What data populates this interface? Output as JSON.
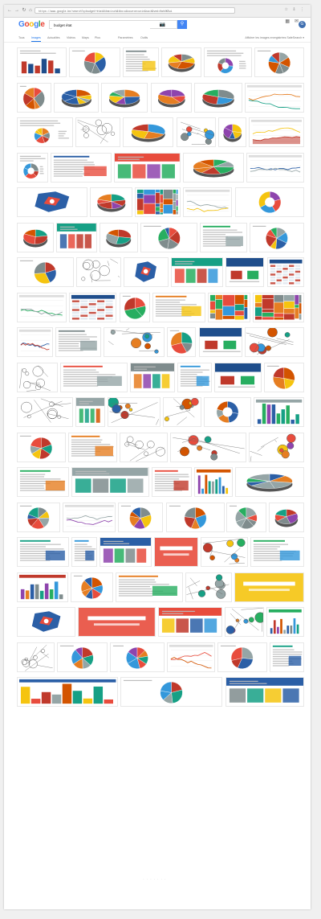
{
  "browser": {
    "url": "https://www.google.be/search?q=budget+état&tbm=isch&tbo=u&source=univ&sa=X&ved=0ahUKEwi",
    "back_icon": "back-arrow-icon",
    "forward_icon": "forward-arrow-icon",
    "reload_icon": "reload-icon"
  },
  "header": {
    "logo_letters": [
      "G",
      "o",
      "o",
      "g",
      "l",
      "e"
    ],
    "search_value": "budget état",
    "search_icon": "search-icon",
    "camera_icon": "camera-icon",
    "apps_icon": "apps-grid-icon",
    "notifications_icon": "bell-icon",
    "avatar_letter": "G"
  },
  "tabs": {
    "items": [
      {
        "label": "Tous"
      },
      {
        "label": "Images"
      },
      {
        "label": "Actualités"
      },
      {
        "label": "Vidéos"
      },
      {
        "label": "Maps"
      },
      {
        "label": "Plus"
      },
      {
        "label": "Paramètres"
      },
      {
        "label": "Outils"
      }
    ],
    "active_index": 1,
    "right_links": "Afficher les images enregistrées   SafeSearch ▾"
  },
  "colors": {
    "accent": "#1a73e8",
    "google_blue": "#4285f4",
    "google_red": "#ea4335",
    "google_yellow": "#fbbc05",
    "google_green": "#34a853",
    "palette": [
      "#2b5fa6",
      "#e84c3d",
      "#f5c40f",
      "#27ae60",
      "#8e44ad",
      "#e67e22",
      "#16a085",
      "#c0392b",
      "#3498db",
      "#95a5a6",
      "#d35400",
      "#7f8c8d"
    ]
  },
  "results": {
    "rows": [
      {
        "tiles": [
          {
            "kind": "doc-bar"
          },
          {
            "kind": "pie"
          },
          {
            "kind": "doc"
          },
          {
            "kind": "pie-3d"
          },
          {
            "kind": "doc-donut"
          },
          {
            "kind": "pie"
          }
        ]
      },
      {
        "tiles": [
          {
            "kind": "pie"
          },
          {
            "kind": "pie-3d"
          },
          {
            "kind": "pie-3d"
          },
          {
            "kind": "pie-3d"
          },
          {
            "kind": "pie-3d"
          },
          {
            "kind": "line"
          }
        ]
      },
      {
        "tiles": [
          {
            "kind": "doc-pie"
          },
          {
            "kind": "sketch"
          },
          {
            "kind": "pie-3d"
          },
          {
            "kind": "cartoon"
          },
          {
            "kind": "pie-3d"
          },
          {
            "kind": "area"
          }
        ]
      },
      {
        "tiles": [
          {
            "kind": "doc-donut"
          },
          {
            "kind": "doc"
          },
          {
            "kind": "infographic"
          },
          {
            "kind": "pie-3d"
          },
          {
            "kind": "line"
          }
        ]
      },
      {
        "tiles": [
          {
            "kind": "map"
          },
          {
            "kind": "pie-3d"
          },
          {
            "kind": "treemap"
          },
          {
            "kind": "line"
          },
          {
            "kind": "donut"
          }
        ]
      },
      {
        "tiles": [
          {
            "kind": "pie-3d"
          },
          {
            "kind": "infographic"
          },
          {
            "kind": "pie-3d"
          },
          {
            "kind": "pie"
          },
          {
            "kind": "doc"
          },
          {
            "kind": "pie"
          }
        ]
      },
      {
        "tiles": [
          {
            "kind": "pie"
          },
          {
            "kind": "sketch"
          },
          {
            "kind": "map"
          },
          {
            "kind": "infographic"
          },
          {
            "kind": "bar-banner"
          },
          {
            "kind": "table"
          }
        ]
      },
      {
        "tiles": [
          {
            "kind": "line"
          },
          {
            "kind": "table"
          },
          {
            "kind": "pie"
          },
          {
            "kind": "doc"
          },
          {
            "kind": "treemap"
          },
          {
            "kind": "treemap"
          }
        ]
      },
      {
        "tiles": [
          {
            "kind": "line"
          },
          {
            "kind": "doc"
          },
          {
            "kind": "cartoon"
          },
          {
            "kind": "pie"
          },
          {
            "kind": "bar-banner"
          },
          {
            "kind": "cartoon"
          }
        ]
      },
      {
        "tiles": [
          {
            "kind": "sketch"
          },
          {
            "kind": "doc"
          },
          {
            "kind": "infographic"
          },
          {
            "kind": "doc"
          },
          {
            "kind": "bar-banner"
          },
          {
            "kind": "pie"
          }
        ]
      },
      {
        "tiles": [
          {
            "kind": "sketch"
          },
          {
            "kind": "infographic"
          },
          {
            "kind": "cartoon"
          },
          {
            "kind": "cartoon"
          },
          {
            "kind": "donut"
          },
          {
            "kind": "bars"
          }
        ]
      },
      {
        "tiles": [
          {
            "kind": "pie"
          },
          {
            "kind": "doc"
          },
          {
            "kind": "sketch"
          },
          {
            "kind": "cartoon"
          },
          {
            "kind": "cartoon"
          }
        ]
      },
      {
        "tiles": [
          {
            "kind": "doc"
          },
          {
            "kind": "infographic"
          },
          {
            "kind": "doc"
          },
          {
            "kind": "bars"
          },
          {
            "kind": "pie-3d"
          }
        ]
      },
      {
        "tiles": [
          {
            "kind": "pie"
          },
          {
            "kind": "line"
          },
          {
            "kind": "pie"
          },
          {
            "kind": "pie"
          },
          {
            "kind": "pie"
          },
          {
            "kind": "pie-3d"
          }
        ]
      },
      {
        "tiles": [
          {
            "kind": "doc"
          },
          {
            "kind": "doc"
          },
          {
            "kind": "infographic"
          },
          {
            "kind": "title-card"
          },
          {
            "kind": "cartoon"
          },
          {
            "kind": "doc"
          }
        ]
      },
      {
        "tiles": [
          {
            "kind": "bars"
          },
          {
            "kind": "pie"
          },
          {
            "kind": "doc"
          },
          {
            "kind": "cartoon"
          },
          {
            "kind": "title-card"
          }
        ]
      },
      {
        "tiles": [
          {
            "kind": "map"
          },
          {
            "kind": "title-card"
          },
          {
            "kind": "infographic"
          },
          {
            "kind": "cartoon"
          },
          {
            "kind": "bars"
          }
        ]
      },
      {
        "tiles": [
          {
            "kind": "sketch"
          },
          {
            "kind": "pie"
          },
          {
            "kind": "pie"
          },
          {
            "kind": "line"
          },
          {
            "kind": "pie"
          },
          {
            "kind": "doc"
          }
        ]
      },
      {
        "tiles": [
          {
            "kind": "bars"
          },
          {
            "kind": "pie"
          },
          {
            "kind": "infographic"
          }
        ]
      }
    ]
  }
}
